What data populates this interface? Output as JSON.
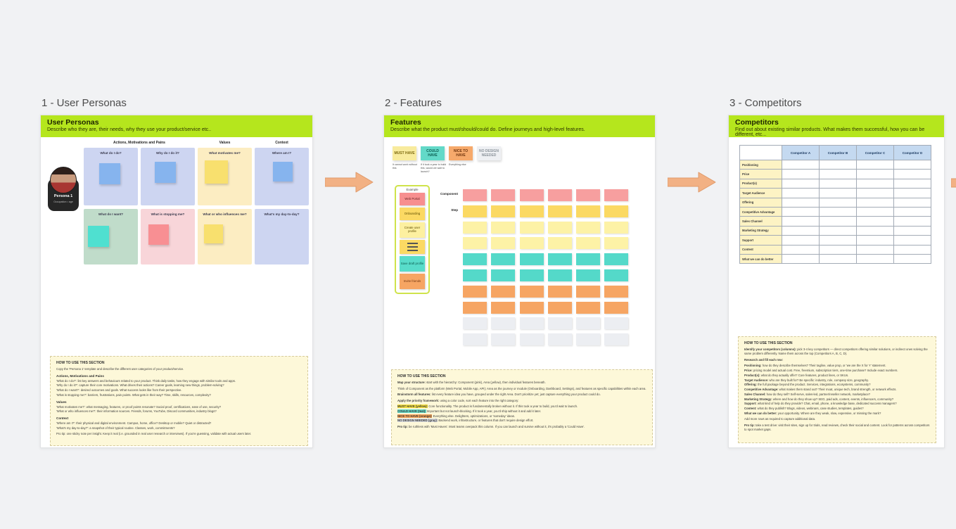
{
  "colors": {
    "background": "#f1f2f4",
    "frame_header_green": "#b5e61d",
    "arrow_fill": "#f2b184",
    "arrow_stroke": "#e09a6a",
    "note_bg": "#fdf8d9",
    "sticky": {
      "salmon": "#f79f9f",
      "deepyellow": "#fbd963",
      "paleyellow": "#fdf2a6",
      "teal": "#54d9c9",
      "orange": "#f6a563",
      "gray": "#eceef2",
      "blue": "#86b4ee",
      "red": "#f88f93",
      "yellow": "#f8e06e"
    },
    "cell_bg": {
      "lavender": "#cdd5f1",
      "cream": "#fcedc2",
      "green": "#c0dcca",
      "pink": "#f8d5d9"
    },
    "table": {
      "header_blue": "#c4d9f0",
      "label_yellow": "#fdf3c4"
    }
  },
  "frames": {
    "personas": {
      "label": "1 - User Personas",
      "title": "User Personas",
      "subtitle": "Describe who they are, their needs, why they use your product/service etc..",
      "column_headers": [
        "Actions, Motivations and Pains",
        "Values",
        "Context"
      ],
      "persona": {
        "name": "Persona 1",
        "meta": "Occupation • age"
      },
      "cells": [
        {
          "question": "What do I do?",
          "bg": "lavender",
          "sticky": "blue"
        },
        {
          "question": "Why do I do it?",
          "bg": "lavender",
          "sticky": "blue"
        },
        {
          "question": "What motivates me?",
          "bg": "cream",
          "sticky": "yellow"
        },
        {
          "question": "Where am I?",
          "bg": "lavender",
          "sticky": "blue"
        },
        {
          "question": "What do I want?",
          "bg": "green",
          "sticky": "teal"
        },
        {
          "question": "What is stopping me?",
          "bg": "pink",
          "sticky": "red"
        },
        {
          "question": "What or who influences me?",
          "bg": "cream",
          "sticky": "yellow"
        },
        {
          "question": "What's my day-to-day?",
          "bg": "lavender",
          "sticky": null
        }
      ],
      "how_to": {
        "heading": "HOW TO USE THIS SECTION",
        "blocks": [
          {
            "type": "p",
            "text": "Copy the 'Persona 1' template and describe the different user categories of your product/service."
          },
          {
            "type": "h",
            "text": "Actions, Motivations and Pains"
          },
          {
            "type": "p",
            "tight": true,
            "text": "'What do I do?': list key answers and behaviours related to your product. Think daily tasks, how they engage with similar tools and apps."
          },
          {
            "type": "p",
            "tight": true,
            "text": "'Why do I do it?': capture their core motivations. What drives their actions? Career goals, learning new things, problem-solving?"
          },
          {
            "type": "p",
            "tight": true,
            "text": "'What do I want?': desired outcomes and goals. What success looks like from their perspective."
          },
          {
            "type": "p",
            "tight": true,
            "text": "'What is stopping me?': barriers, frustrations, pain points. What gets in their way? Time, skills, resources, complexity?"
          },
          {
            "type": "h",
            "text": "Values"
          },
          {
            "type": "p",
            "tight": true,
            "text": "'What motivates me?': what messaging, features, or proof points resonate? Social proof, certifications, ease of use, security?"
          },
          {
            "type": "p",
            "tight": true,
            "text": "'What or who influences me?': their information sources. Friends, forums, YouTube, Discord communities, industry blogs?"
          },
          {
            "type": "h",
            "text": "Context"
          },
          {
            "type": "p",
            "tight": true,
            "text": "'Where am I?': their physical and digital environment. Campus, home, office? Desktop or mobile? Quiet or distracted?"
          },
          {
            "type": "p",
            "tight": true,
            "text": "'What's my day-to-day?': a snapshot of their typical routine. Classes, work, commitments?"
          },
          {
            "type": "p",
            "text": "Pro tip: one sticky note per insight. Keep it real (i.e. grounded in real user research or interviews). If you're guessing, validate with actual users later."
          }
        ]
      }
    },
    "features": {
      "label": "2 - Features",
      "title": "Features",
      "subtitle": "Describe what the product must/should/could do. Define journeys and high-level features.",
      "legend": [
        {
          "title": "MUST HAVE",
          "caption": "It cannot work without this",
          "color": "must"
        },
        {
          "title": "COULD HAVE",
          "caption": "If it took a year to build this, would we wait to launch?",
          "color": "could"
        },
        {
          "title": "NICE TO HAVE",
          "caption": "Everything else",
          "color": "nice"
        },
        {
          "title": "NO DESIGN NEEDED",
          "caption": "",
          "color": "none"
        }
      ],
      "example": {
        "label": "Example",
        "items": [
          {
            "label": "Web Portal",
            "color": "salmon"
          },
          {
            "label": "Onboarding",
            "color": "deepyellow"
          },
          {
            "label": "Create user profile",
            "color": "paleyellow"
          },
          {
            "label": "",
            "color": "deepyellow",
            "icon": "menu-lines-icon"
          },
          {
            "label": "Save draft profile",
            "color": "teal"
          },
          {
            "label": "Invite friends",
            "color": "orange"
          }
        ]
      },
      "row_labels": [
        "Component",
        "Step"
      ],
      "grid": {
        "cols": 6,
        "row_colors": [
          "salmon",
          "deepyellow",
          "paleyellow",
          "paleyellow",
          "teal",
          "teal",
          "orange",
          "orange",
          "gray",
          "gray"
        ]
      },
      "how_to": {
        "heading": "HOW TO USE THIS SECTION",
        "blocks": [
          {
            "type": "p",
            "lead": "Map your structure:",
            "text": " start with the hierarchy: Component (pink), Area (yellow), then individual features beneath."
          },
          {
            "type": "p",
            "tight": true,
            "text": "Think of Component as the platform (Web Portal, Mobile App, API); Area as the journey or module (Onboarding, Dashboard, Settings), and features as specific capabilities within each area."
          },
          {
            "type": "p",
            "lead": "Brainstorm all features:",
            "text": " list every feature idea you have, grouped under the right Area. Don't prioritize yet; just capture everything your product could do."
          },
          {
            "type": "p",
            "lead": "Apply the priority framework:",
            "text": " using a color code, sort each feature into the right category:"
          },
          {
            "type": "p",
            "tight": true,
            "hl": "yellow",
            "lead": "MUST HAVE (yellow):",
            "text": " Core functionality. The product is fundamentally broken without it. If this took a year to build, you'd wait to launch."
          },
          {
            "type": "p",
            "tight": true,
            "hl": "teal",
            "lead": "COULD HAVE (teal):",
            "text": " Important but not launch-blocking. If it took a year, you'd ship without it and add it later."
          },
          {
            "type": "p",
            "tight": true,
            "hl": "orange",
            "lead": "NICE TO HAVE (orange):",
            "text": " Everything else. Delighters, optimizations, or 'someday' ideas."
          },
          {
            "type": "p",
            "tight": true,
            "hl": "gray",
            "lead": "NO DESIGN NEEDED (gray):",
            "text": " Backend work, infrastructure, or features that don't require design effort."
          },
          {
            "type": "p",
            "lead": "Pro tip:",
            "text": " be ruthless with 'Must Haves'. Most teams overpack this column. If you can launch and survive without it, it's probably a 'Could Have'."
          }
        ]
      }
    },
    "competitors": {
      "label": "3 - Competitors",
      "title": "Competitors",
      "subtitle": "Find out about existing similar products. What makes them successful, how you can be different, etc...",
      "table": {
        "corner": "",
        "columns": [
          "Competitor A",
          "Competitor B",
          "Competitor C",
          "Competitor D"
        ],
        "rows": [
          "Positioning",
          "Price",
          "Product(s)",
          "Target Audience",
          "Offering",
          "Competitive Advantage",
          "Sales Channel",
          "Marketing Strategy",
          "Support",
          "Content",
          "What we can do better"
        ]
      },
      "how_to": {
        "heading": "HOW TO USE THIS SECTION",
        "blocks": [
          {
            "type": "p",
            "lead": "Identify your competitors (columns):",
            "text": " pick 3-4 key competitors — direct competitors offering similar solutions, or indirect ones solving the same problem differently. Name them across the top (Competitors A, B, C, D)."
          },
          {
            "type": "p",
            "lead": "Research and fill each row:",
            "text": ""
          },
          {
            "type": "p",
            "tight": true,
            "lead": "Positioning:",
            "text": " how do they describe themselves? Their tagline, value prop, or 'we are the X for Y' statement."
          },
          {
            "type": "p",
            "tight": true,
            "lead": "Price:",
            "text": " pricing model and actual cost. Free, freemium, subscription tiers, one-time purchase? Include exact numbers."
          },
          {
            "type": "p",
            "tight": true,
            "lead": "Product(s):",
            "text": " what do they actually offer? Core features, product lines, or SKUs."
          },
          {
            "type": "p",
            "tight": true,
            "lead": "Target Audience:",
            "text": " who are they built for? Be specific: industry, role, company size, geography."
          },
          {
            "type": "p",
            "tight": true,
            "lead": "Offering:",
            "text": " the full package beyond the product. Services, integrations, ecosystems, community?"
          },
          {
            "type": "p",
            "tight": true,
            "lead": "Competitive Advantage:",
            "text": " what makes them stand out? Their moat, unique tech, brand strength, or network effects."
          },
          {
            "type": "p",
            "tight": true,
            "lead": "Sales Channel:",
            "text": " how do they sell? Self-serve, sales-led, partner/reseller network, marketplace?"
          },
          {
            "type": "p",
            "tight": true,
            "lead": "Marketing Strategy:",
            "text": " where and how do they show up? SEO, paid ads, content, events, influencers, community?"
          },
          {
            "type": "p",
            "tight": true,
            "lead": "Support:",
            "text": " what kind of help do they provide? Chat, email, phone, a knowledge base, dedicated success managers?"
          },
          {
            "type": "p",
            "tight": true,
            "lead": "Content:",
            "text": " what do they publish? Blogs, videos, webinars, case studies, templates, guides?"
          },
          {
            "type": "p",
            "tight": true,
            "lead": "What we can do better:",
            "text": " your opportunity. Where are they weak, slow, expensive, or missing the mark?"
          },
          {
            "type": "p",
            "text": "Add more rows as required to capture additional data."
          },
          {
            "type": "p",
            "lead": "Pro tip:",
            "text": " take a test drive: visit their sites, sign up for trials, read reviews, check their social and content. Look for patterns across competitors to spot market gaps."
          }
        ]
      }
    }
  }
}
